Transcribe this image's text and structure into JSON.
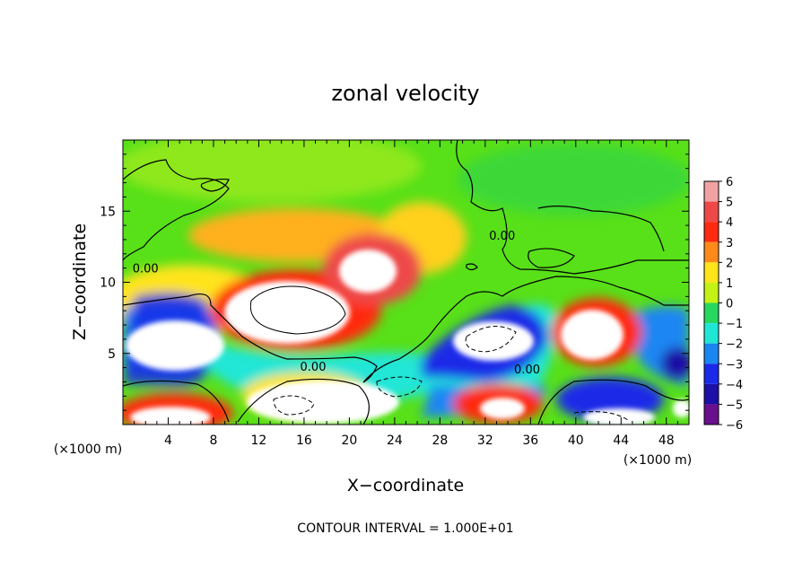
{
  "chart_data": {
    "type": "heatmap",
    "title": "zonal velocity",
    "xlabel": "X−coordinate",
    "ylabel": "Z−coordinate",
    "x_unit": "(×1000 m)",
    "y_unit": "(×1000 m)",
    "footer": "CONTOUR INTERVAL = 1.000E+01",
    "xlim": [
      0,
      50
    ],
    "ylim": [
      0,
      20
    ],
    "x_ticks": [
      4,
      8,
      12,
      16,
      20,
      24,
      28,
      32,
      36,
      40,
      44,
      48
    ],
    "y_ticks": [
      5,
      10,
      15
    ],
    "colorbar": {
      "ticks": [
        6,
        5,
        4,
        3,
        2,
        1,
        0,
        -1,
        -2,
        -3,
        -4,
        -5,
        -6
      ],
      "range": [
        -6,
        6
      ],
      "colors": {
        "6": "#f2a2a2",
        "5": "#ee4848",
        "4": "#ff2a10",
        "3": "#ff8a1a",
        "2": "#ffe41a",
        "1": "#c4f214",
        "0": "#58e018",
        "-1": "#26d860",
        "-2": "#20e6d6",
        "-3": "#1a86f2",
        "-4": "#1a2ae8",
        "-5": "#1c10a6",
        "-6": "#6a0f8e"
      }
    },
    "contour_labels": [
      {
        "text": "0.00",
        "x": 2.0,
        "z": 11.0
      },
      {
        "text": "0.00",
        "x": 33.5,
        "z": 13.3
      },
      {
        "text": "0.00",
        "x": 16.8,
        "z": 4.1
      },
      {
        "text": "0.00",
        "x": 35.7,
        "z": 3.9
      }
    ],
    "notes": "Zonal velocity field over X 0–50 (×1000 m) and Z 0–20 (×1000 m); values saturate beyond ±6 (white regions)."
  }
}
